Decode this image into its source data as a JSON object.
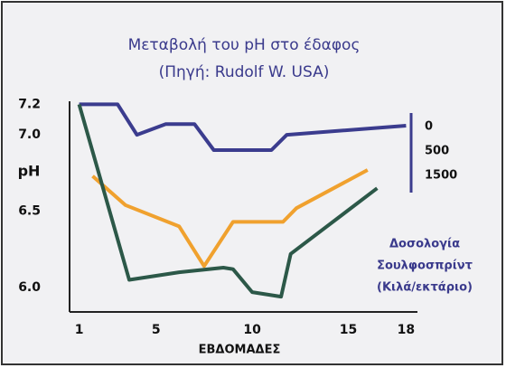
{
  "chart_data": {
    "type": "line",
    "title": "Μεταβολή του pH στο έδαφος",
    "subtitle": "(Πηγή: Rudolf W. USA)",
    "y_label": "pH",
    "x_label": "ΕΒΔΟΜΑΔΕΣ",
    "xlim": [
      0.5,
      18.5
    ],
    "xticks": [
      1,
      5,
      10,
      15,
      18
    ],
    "ylim": [
      5.84,
      7.22
    ],
    "yticks": [
      7.2,
      {
        "value": 7,
        "label": "7.0"
      },
      6.5,
      {
        "value": 6,
        "label": "6.0"
      }
    ],
    "grid": false,
    "legend_title": [
      "Δοσολογία",
      "Σουλφοσπρίντ",
      "(Κιλά/εκτάριο)"
    ],
    "series": [
      {
        "name": "0",
        "color": "#3b3c8e",
        "x": [
          1,
          3,
          4,
          5.5,
          7,
          8,
          11,
          11.8,
          18
        ],
        "values": [
          7.2,
          7.2,
          7.0,
          7.07,
          7.07,
          6.9,
          6.9,
          7.0,
          7.06
        ]
      },
      {
        "name": "500",
        "color": "#f0a12e",
        "x": [
          1.7,
          3.4,
          6.2,
          7.5,
          9,
          11.6,
          12.3,
          16
        ],
        "values": [
          6.73,
          6.54,
          6.4,
          6.14,
          6.43,
          6.43,
          6.52,
          6.77
        ]
      },
      {
        "name": "1500",
        "color": "#2c5848",
        "x": [
          1,
          3.6,
          6.2,
          8.5,
          9,
          10,
          11.5,
          12,
          16.5
        ],
        "values": [
          7.2,
          6.05,
          6.1,
          6.13,
          6.12,
          5.97,
          5.94,
          6.22,
          6.65
        ]
      }
    ]
  }
}
